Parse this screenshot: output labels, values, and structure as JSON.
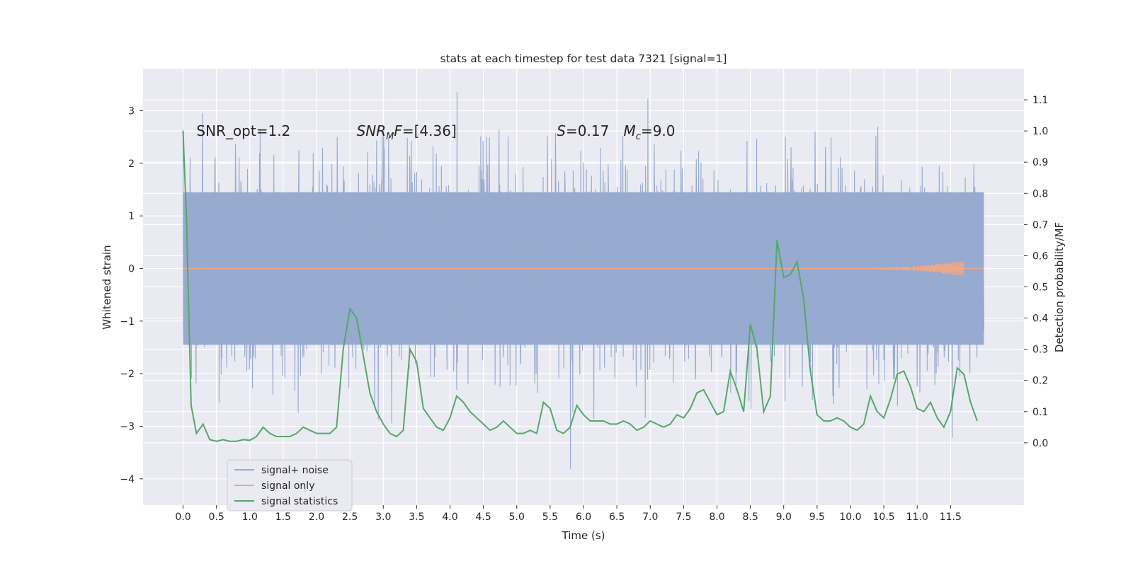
{
  "chart_data": {
    "type": "line",
    "title": "stats at each timestep for test data 7321 [signal=1]",
    "xlabel": "Time (s)",
    "ylabel": "Whitened strain",
    "ylabel_right": "Detection probability/MF",
    "xlim": [
      -0.6,
      12.6
    ],
    "ylim": [
      -4.5,
      3.8
    ],
    "ylim_right": [
      -0.2,
      1.2
    ],
    "x_ticks": [
      "0.0",
      "0.5",
      "1.0",
      "1.5",
      "2.0",
      "2.5",
      "3.0",
      "3.5",
      "4.0",
      "4.5",
      "5.0",
      "5.5",
      "6.0",
      "6.5",
      "7.0",
      "7.5",
      "8.0",
      "8.5",
      "9.0",
      "9.5",
      "10.0",
      "10.5",
      "11.0",
      "11.5"
    ],
    "y_ticks": [
      -4,
      -3,
      -2,
      -1,
      0,
      1,
      2,
      3
    ],
    "y_ticks_right": [
      "0.0",
      "0.1",
      "0.2",
      "0.3",
      "0.4",
      "0.5",
      "0.6",
      "0.7",
      "0.8",
      "0.9",
      "1.0",
      "1.1"
    ],
    "grid": true,
    "legend_placement": "lower-left",
    "annotations": [
      {
        "text": "SNR_opt=1.2",
        "x": 0.2,
        "y": 2.6
      },
      {
        "text": "SNR",
        "sub": "M",
        "after": "F=[4.36]",
        "x": 2.6,
        "y": 2.6
      },
      {
        "text": "S",
        "after": "=0.17",
        "x": 5.6,
        "y": 2.6
      },
      {
        "text": "M",
        "sub": "c",
        "after": "=9.0",
        "x": 6.6,
        "y": 2.6
      }
    ],
    "series": [
      {
        "name": "signal+ noise",
        "color": "#97aacf",
        "axis": "left",
        "style": "noise-band",
        "x_range": [
          0.0,
          12.0
        ],
        "core_range": [
          -1.45,
          1.45
        ],
        "spread": 2.2,
        "max": 3.4,
        "min": -4.1
      },
      {
        "name": "signal only",
        "color": "#e9a98a",
        "axis": "left",
        "style": "chirp",
        "x_range": [
          0.0,
          11.7
        ],
        "chirp_start": 10.0,
        "chirp_peak_amplitude": 0.15
      },
      {
        "name": "signal statistics",
        "color": "#55a868",
        "axis": "right",
        "x": [
          0.0,
          0.05,
          0.12,
          0.2,
          0.3,
          0.4,
          0.5,
          0.6,
          0.7,
          0.8,
          0.9,
          1.0,
          1.1,
          1.2,
          1.3,
          1.4,
          1.5,
          1.6,
          1.7,
          1.8,
          1.9,
          2.0,
          2.1,
          2.2,
          2.3,
          2.4,
          2.5,
          2.6,
          2.7,
          2.8,
          2.9,
          3.0,
          3.1,
          3.2,
          3.3,
          3.4,
          3.5,
          3.6,
          3.7,
          3.8,
          3.9,
          4.0,
          4.1,
          4.2,
          4.3,
          4.4,
          4.5,
          4.6,
          4.7,
          4.8,
          4.9,
          5.0,
          5.1,
          5.2,
          5.3,
          5.4,
          5.5,
          5.6,
          5.7,
          5.8,
          5.9,
          6.0,
          6.1,
          6.2,
          6.3,
          6.4,
          6.5,
          6.6,
          6.7,
          6.8,
          6.9,
          7.0,
          7.1,
          7.2,
          7.3,
          7.4,
          7.5,
          7.6,
          7.7,
          7.8,
          7.9,
          8.0,
          8.1,
          8.2,
          8.3,
          8.4,
          8.5,
          8.6,
          8.7,
          8.8,
          8.9,
          9.0,
          9.1,
          9.2,
          9.3,
          9.4,
          9.5,
          9.6,
          9.7,
          9.8,
          9.9,
          10.0,
          10.1,
          10.2,
          10.3,
          10.4,
          10.5,
          10.6,
          10.7,
          10.8,
          10.9,
          11.0,
          11.1,
          11.2,
          11.3,
          11.4,
          11.5,
          11.6,
          11.7,
          11.8,
          11.9
        ],
        "values": [
          1.0,
          0.72,
          0.12,
          0.03,
          0.06,
          0.01,
          0.005,
          0.01,
          0.005,
          0.005,
          0.01,
          0.008,
          0.02,
          0.05,
          0.03,
          0.02,
          0.02,
          0.02,
          0.03,
          0.05,
          0.04,
          0.03,
          0.03,
          0.03,
          0.05,
          0.3,
          0.43,
          0.4,
          0.28,
          0.16,
          0.1,
          0.06,
          0.03,
          0.02,
          0.04,
          0.3,
          0.26,
          0.11,
          0.08,
          0.05,
          0.04,
          0.08,
          0.15,
          0.13,
          0.1,
          0.08,
          0.06,
          0.04,
          0.05,
          0.07,
          0.05,
          0.03,
          0.03,
          0.04,
          0.03,
          0.13,
          0.11,
          0.04,
          0.03,
          0.05,
          0.12,
          0.09,
          0.07,
          0.07,
          0.07,
          0.06,
          0.06,
          0.07,
          0.06,
          0.04,
          0.05,
          0.07,
          0.06,
          0.05,
          0.06,
          0.09,
          0.08,
          0.11,
          0.16,
          0.17,
          0.13,
          0.09,
          0.1,
          0.23,
          0.17,
          0.1,
          0.38,
          0.3,
          0.1,
          0.15,
          0.65,
          0.53,
          0.54,
          0.58,
          0.46,
          0.23,
          0.09,
          0.07,
          0.07,
          0.08,
          0.07,
          0.05,
          0.04,
          0.06,
          0.15,
          0.1,
          0.08,
          0.14,
          0.22,
          0.23,
          0.18,
          0.11,
          0.1,
          0.13,
          0.08,
          0.05,
          0.1,
          0.24,
          0.22,
          0.13,
          0.07
        ]
      }
    ]
  }
}
